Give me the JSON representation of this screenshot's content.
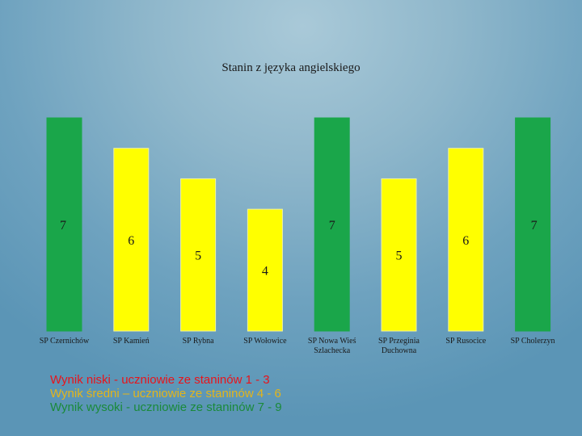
{
  "chart_data": {
    "type": "bar",
    "title": "Stanin z języka angielskiego",
    "xlabel": "",
    "ylabel": "",
    "categories": [
      [
        "SP Czernichów"
      ],
      [
        "SP Kamień"
      ],
      [
        "SP Rybna"
      ],
      [
        "SP Wołowice"
      ],
      [
        "SP Nowa Wieś",
        "Szlachecka"
      ],
      [
        "SP Przeginia",
        "Duchowna"
      ],
      [
        "SP Rusocice"
      ],
      [
        "SP Cholerzyn"
      ]
    ],
    "values": [
      7,
      6,
      5,
      4,
      7,
      5,
      6,
      7
    ],
    "ylim": [
      0,
      7
    ],
    "grid": false,
    "legend": "bottom-left",
    "bar_colors": {
      "high": "#1aa64a",
      "medium": "#ffff00"
    }
  },
  "legend": {
    "items": [
      {
        "text": "Wynik niski - uczniowie ze staninów 1 - 3",
        "color": "#e8141b"
      },
      {
        "text": "Wynik średni – uczniowie ze staninów 4 - 6",
        "color": "#e3b51b"
      },
      {
        "text": "Wynik wysoki - uczniowie ze staninów 7 - 9",
        "color": "#1a8a3a"
      }
    ]
  }
}
